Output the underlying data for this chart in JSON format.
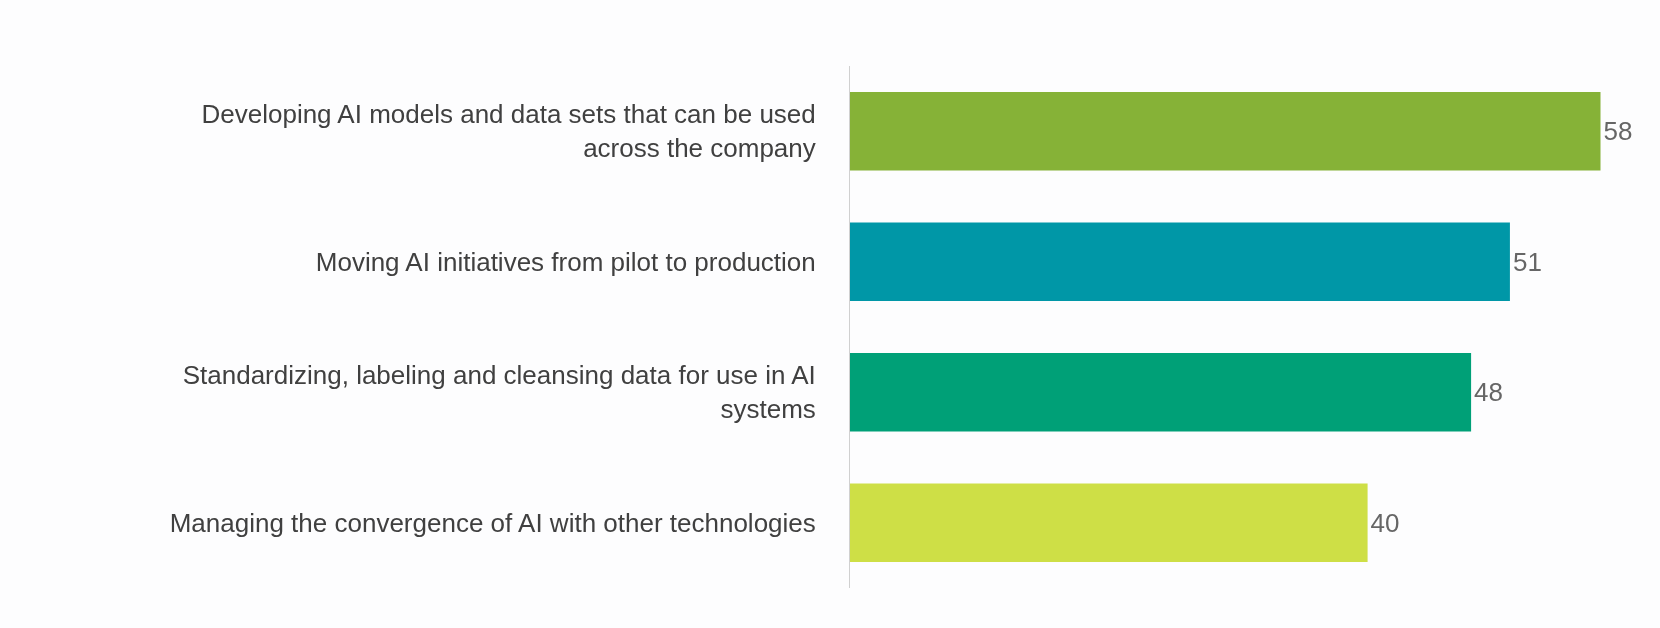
{
  "chart_data": {
    "type": "bar",
    "orientation": "horizontal",
    "categories": [
      "Developing AI models and data sets that can be used across the company",
      "Moving AI initiatives from pilot to production",
      "Standardizing, labeling and cleansing data for use in AI systems",
      "Managing the convergence of AI with other technologies"
    ],
    "values": [
      58,
      51,
      48,
      40
    ],
    "colors": [
      "#86b237",
      "#0097a7",
      "#00a077",
      "#cedf46"
    ],
    "data_labels": true,
    "tick_labels": "y"
  }
}
